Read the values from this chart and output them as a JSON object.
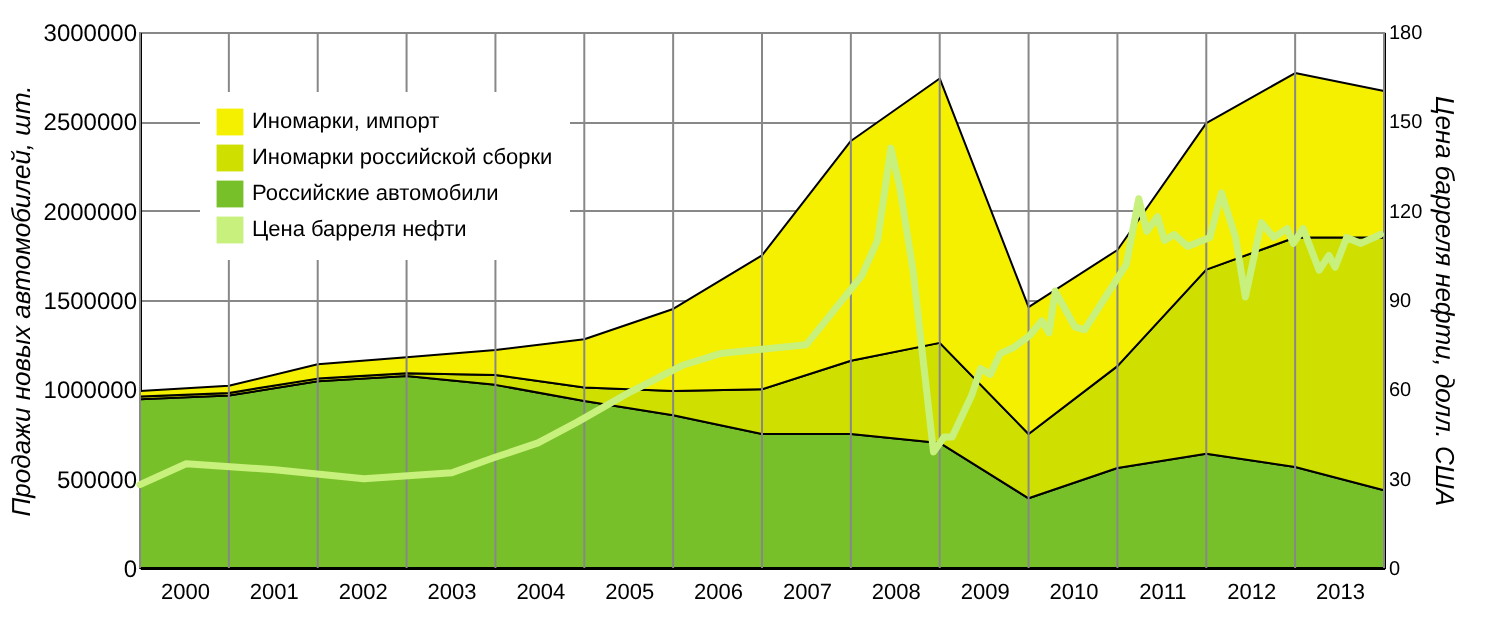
{
  "chart_data": {
    "type": "area",
    "stacked": true,
    "ylabel": "Продажи новых автомобилей, шт.",
    "y2label": "Цена барреля нефти, долл. США",
    "x": [
      1999.5,
      2000.5,
      2001.5,
      2002.5,
      2003.5,
      2004.5,
      2005.5,
      2006.5,
      2007.5,
      2008.5,
      2009.5,
      2010.5,
      2011.5,
      2012.5,
      2013.5
    ],
    "xlim": [
      1999.5,
      2013.5
    ],
    "xticks": [
      {
        "value": 1999.5,
        "label": null
      },
      2000,
      {
        "value": 2000.5,
        "label": null
      },
      2001,
      {
        "value": 2001.5,
        "label": null
      },
      2002,
      {
        "value": 2002.5,
        "label": null
      },
      2003,
      {
        "value": 2003.5,
        "label": null
      },
      2004,
      {
        "value": 2004.5,
        "label": null
      },
      2005,
      {
        "value": 2005.5,
        "label": null
      },
      2006,
      {
        "value": 2006.5,
        "label": null
      },
      2007,
      {
        "value": 2007.5,
        "label": null
      },
      2008,
      {
        "value": 2008.5,
        "label": null
      },
      2009,
      {
        "value": 2009.5,
        "label": null
      },
      2010,
      {
        "value": 2010.5,
        "label": null
      },
      2011,
      {
        "value": 2011.5,
        "label": null
      },
      2012,
      {
        "value": 2012.5,
        "label": null
      },
      2013,
      {
        "value": 2013.5,
        "label": null
      }
    ],
    "ylim": [
      0,
      3000000
    ],
    "yticks": [
      0,
      500000,
      1000000,
      1500000,
      2000000,
      2500000,
      3000000
    ],
    "y2lim": [
      0,
      180
    ],
    "y2ticks": [
      0,
      30,
      60,
      90,
      120,
      150,
      180
    ],
    "grid": true,
    "legend": "top left",
    "marker": "none",
    "line_style": "solid",
    "series": [
      {
        "name": "Российские автомобили",
        "color": "#78c02a",
        "values": [
          945000,
          965000,
          1045000,
          1075000,
          1025000,
          935000,
          855000,
          750000,
          750000,
          700000,
          390000,
          560000,
          640000,
          565000,
          435000
        ]
      },
      {
        "name": "Иномарки российской сборки",
        "color": "#cfe000",
        "values": [
          15000,
          15000,
          15000,
          15000,
          55000,
          75000,
          135000,
          250000,
          410000,
          560000,
          360000,
          570000,
          1030000,
          1285000,
          1415000
        ]
      },
      {
        "name": "Иномарки, импорт",
        "color": "#f5f000",
        "values": [
          30000,
          40000,
          80000,
          90000,
          140000,
          270000,
          460000,
          750000,
          1230000,
          1480000,
          710000,
          650000,
          820000,
          920000,
          820000
        ]
      },
      {
        "name": "Цена барреля нефти",
        "type": "line",
        "axis": "y2",
        "color": "#c8f07c",
        "x": [
          1999.5,
          2000.02,
          2001.02,
          2002.02,
          2003.01,
          2003.48,
          2003.98,
          2004.42,
          2005.01,
          2005.6,
          2006.03,
          2007.0,
          2007.62,
          2007.8,
          2007.95,
          2008.05,
          2008.2,
          2008.43,
          2008.55,
          2008.64,
          2008.86,
          2008.96,
          2009.07,
          2009.18,
          2009.33,
          2009.51,
          2009.65,
          2009.73,
          2009.8,
          2010.02,
          2010.13,
          2010.6,
          2010.74,
          2010.83,
          2010.95,
          2011.03,
          2011.14,
          2011.29,
          2011.54,
          2011.67,
          2011.83,
          2011.94,
          2012.12,
          2012.26,
          2012.41,
          2012.48,
          2012.59,
          2012.77,
          2012.88,
          2012.95,
          2013.08,
          2013.24,
          2013.46
        ],
        "values": [
          28,
          35,
          33,
          30,
          32,
          37,
          42,
          49,
          59,
          68,
          72,
          75,
          98,
          110,
          141,
          128,
          100,
          39,
          44,
          44,
          58,
          67,
          65,
          72,
          74,
          78,
          83,
          79,
          93,
          81,
          80,
          102,
          124,
          113,
          118,
          110,
          112,
          108,
          111,
          126,
          111,
          91,
          116,
          111,
          114,
          109,
          114,
          100,
          105,
          101,
          111,
          109,
          112
        ]
      }
    ]
  }
}
